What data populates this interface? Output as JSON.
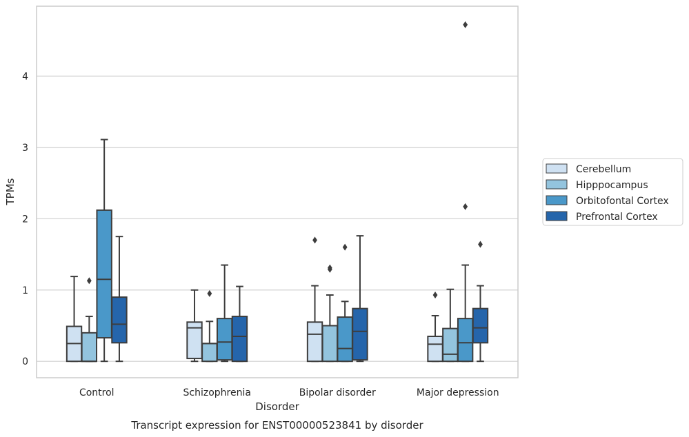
{
  "chart_data": {
    "type": "box",
    "caption": "Transcript expression for ENST00000523841 by disorder",
    "xlabel": "Disorder",
    "ylabel": "TPMs",
    "ylim": [
      -0.23,
      4.98
    ],
    "yticks": [
      0,
      1,
      2,
      3,
      4
    ],
    "grid": "horizontal",
    "legend": "right",
    "categories": [
      "Control",
      "Schizophrenia",
      "Bipolar disorder",
      "Major depression"
    ],
    "series": [
      {
        "name": "Cerebellum",
        "color": "#cfe1f2",
        "boxes": [
          {
            "whislo": 0.0,
            "q1": 0.0,
            "med": 0.25,
            "q3": 0.49,
            "whishi": 1.19,
            "fliers": []
          },
          {
            "whislo": 0.0,
            "q1": 0.04,
            "med": 0.47,
            "q3": 0.55,
            "whishi": 1.0,
            "fliers": []
          },
          {
            "whislo": 0.0,
            "q1": 0.0,
            "med": 0.38,
            "q3": 0.55,
            "whishi": 1.06,
            "fliers": [
              1.7
            ]
          },
          {
            "whislo": 0.0,
            "q1": 0.0,
            "med": 0.24,
            "q3": 0.35,
            "whishi": 0.64,
            "fliers": [
              0.93
            ]
          }
        ]
      },
      {
        "name": "Hipppocampus",
        "color": "#93c4de",
        "boxes": [
          {
            "whislo": 0.0,
            "q1": 0.0,
            "med": 0.0,
            "q3": 0.4,
            "whishi": 0.63,
            "fliers": [
              1.13
            ]
          },
          {
            "whislo": 0.0,
            "q1": 0.0,
            "med": 0.25,
            "q3": 0.25,
            "whishi": 0.56,
            "fliers": [
              0.95
            ]
          },
          {
            "whislo": 0.0,
            "q1": 0.0,
            "med": 0.5,
            "q3": 0.5,
            "whishi": 0.93,
            "fliers": [
              1.29,
              1.31
            ]
          },
          {
            "whislo": 0.0,
            "q1": 0.0,
            "med": 0.1,
            "q3": 0.46,
            "whishi": 1.01,
            "fliers": []
          }
        ]
      },
      {
        "name": "Orbitofontal Cortex",
        "color": "#4a98c9",
        "boxes": [
          {
            "whislo": 0.0,
            "q1": 0.33,
            "med": 1.15,
            "q3": 2.12,
            "whishi": 3.11,
            "fliers": []
          },
          {
            "whislo": 0.0,
            "q1": 0.02,
            "med": 0.27,
            "q3": 0.6,
            "whishi": 1.35,
            "fliers": []
          },
          {
            "whislo": 0.0,
            "q1": 0.0,
            "med": 0.18,
            "q3": 0.62,
            "whishi": 0.84,
            "fliers": [
              1.6
            ]
          },
          {
            "whislo": 0.0,
            "q1": 0.0,
            "med": 0.26,
            "q3": 0.6,
            "whishi": 1.35,
            "fliers": [
              2.17,
              4.72
            ]
          }
        ]
      },
      {
        "name": "Prefrontal Cortex",
        "color": "#2565ab",
        "boxes": [
          {
            "whislo": 0.0,
            "q1": 0.26,
            "med": 0.52,
            "q3": 0.9,
            "whishi": 1.75,
            "fliers": []
          },
          {
            "whislo": 0.0,
            "q1": 0.0,
            "med": 0.35,
            "q3": 0.63,
            "whishi": 1.05,
            "fliers": []
          },
          {
            "whislo": 0.0,
            "q1": 0.02,
            "med": 0.42,
            "q3": 0.74,
            "whishi": 1.76,
            "fliers": []
          },
          {
            "whislo": 0.0,
            "q1": 0.26,
            "med": 0.47,
            "q3": 0.74,
            "whishi": 1.06,
            "fliers": [
              1.64
            ]
          }
        ]
      }
    ]
  }
}
